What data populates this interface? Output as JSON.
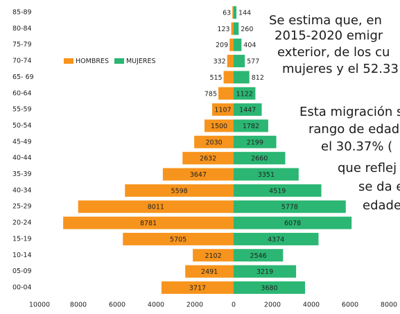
{
  "chart_data": {
    "type": "pyramid",
    "categories": [
      "85-89",
      "80-84",
      "75-79",
      "70-74",
      "65- 69",
      "60-64",
      "55-59",
      "50-54",
      "45-49",
      "40-44",
      "35-39",
      "40-34",
      "25-29",
      "20-24",
      "15-19",
      "10-14",
      "05-09",
      "00-04"
    ],
    "series": [
      {
        "name": "HOMBRES",
        "color": "#f7941d",
        "side": "left",
        "values": [
          63,
          123,
          209,
          332,
          515,
          785,
          1107,
          1500,
          2030,
          2632,
          3647,
          5598,
          8011,
          8781,
          5705,
          2102,
          2491,
          3717
        ]
      },
      {
        "name": "MUJERES",
        "color": "#2bb673",
        "side": "right",
        "values": [
          144,
          260,
          404,
          577,
          812,
          1122,
          1447,
          1782,
          2199,
          2660,
          3351,
          4519,
          5778,
          6078,
          4374,
          2546,
          3219,
          3680
        ]
      }
    ],
    "xlim": [
      -10000,
      8000
    ],
    "xticks": [
      {
        "value": -10000,
        "label": "10000"
      },
      {
        "value": -8000,
        "label": "8000"
      },
      {
        "value": -6000,
        "label": "6000"
      },
      {
        "value": -4000,
        "label": "4000"
      },
      {
        "value": -2000,
        "label": "2000"
      },
      0,
      2000,
      4000,
      6000,
      8000
    ],
    "text": [
      "Se estima que, en",
      "2015-2020 emigr",
      "exterior, de los cu",
      "mujeres y el 52.33",
      "Esta migración s",
      "rango de edad",
      "el 30.37% (",
      "que reflej",
      "se da e",
      "edade"
    ]
  }
}
